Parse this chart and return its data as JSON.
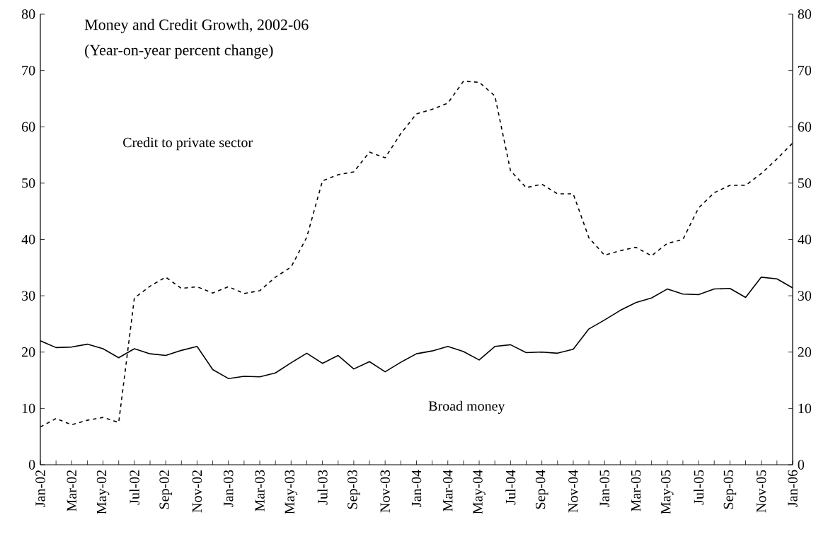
{
  "chart_data": {
    "type": "line",
    "title": "Money and Credit Growth, 2002-06",
    "subtitle": "(Year-on-year percent change)",
    "annotations": [
      "Credit to private sector",
      "Broad money"
    ],
    "categories": [
      "Jan-02",
      null,
      "Mar-02",
      null,
      "May-02",
      null,
      "Jul-02",
      null,
      "Sep-02",
      null,
      "Nov-02",
      null,
      "Jan-03",
      null,
      "Mar-03",
      null,
      "May-03",
      null,
      "Jul-03",
      null,
      "Sep-03",
      null,
      "Nov-03",
      null,
      "Jan-04",
      null,
      "Mar-04",
      null,
      "May-04",
      null,
      "Jul-04",
      null,
      "Sep-04",
      null,
      "Nov-04",
      null,
      "Jan-05",
      null,
      "Mar-05",
      null,
      "May-05",
      null,
      "Jul-05",
      null,
      "Sep-05",
      null,
      "Nov-05",
      null,
      "Jan-06"
    ],
    "series": [
      {
        "color": "#000000",
        "line_style": "dashed",
        "values": [
          6.7,
          8.2,
          7.1,
          7.9,
          8.4,
          7.5,
          29.6,
          31.7,
          33.3,
          31.3,
          31.6,
          30.5,
          31.6,
          30.4,
          30.9,
          33.3,
          35.1,
          40.4,
          50.4,
          51.5,
          52.0,
          55.5,
          54.5,
          58.8,
          62.3,
          63.1,
          64.2,
          68.1,
          67.9,
          65.5,
          52.2,
          49.2,
          49.8,
          48.1,
          48.1,
          40.3,
          37.2,
          38.0,
          38.6,
          37.1,
          39.3,
          40.0,
          45.6,
          48.3,
          49.6,
          49.6,
          51.7,
          54.3,
          57.1
        ]
      },
      {
        "color": "#000000",
        "line_style": "solid",
        "values": [
          22.0,
          20.8,
          20.9,
          21.4,
          20.6,
          19.0,
          20.6,
          19.7,
          19.4,
          20.3,
          21.0,
          16.9,
          15.3,
          15.7,
          15.6,
          16.3,
          18.1,
          19.8,
          18.0,
          19.4,
          17.0,
          18.3,
          16.5,
          18.2,
          19.7,
          20.2,
          21.0,
          20.1,
          18.6,
          21.0,
          21.3,
          19.9,
          20.0,
          19.8,
          20.5,
          24.1,
          25.7,
          27.4,
          28.8,
          29.6,
          31.2,
          30.3,
          30.2,
          31.2,
          31.3,
          29.7,
          33.3,
          33.0,
          31.4
        ]
      }
    ],
    "ylim": [
      0,
      80
    ],
    "yticks": [
      0,
      10,
      20,
      30,
      40,
      50,
      60,
      70,
      80
    ],
    "y2lim": [
      0,
      80
    ],
    "y2ticks": [
      0,
      10,
      20,
      30,
      40,
      50,
      60,
      70,
      80
    ],
    "grid": false,
    "legend": false,
    "marker": "none"
  }
}
